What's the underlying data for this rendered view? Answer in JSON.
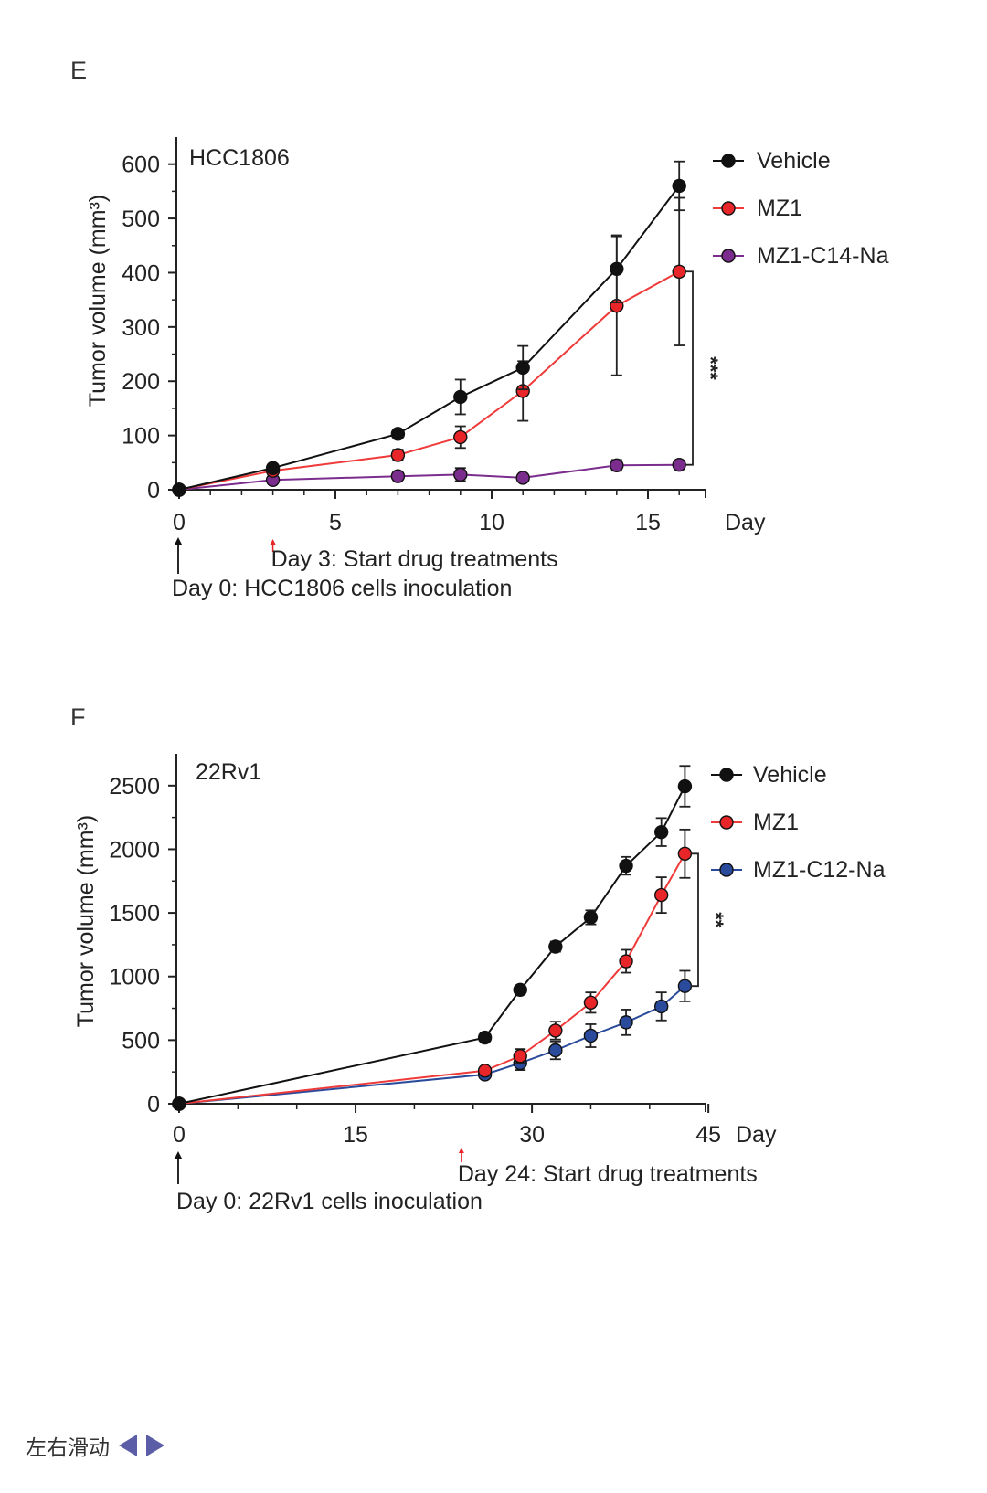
{
  "panels": {
    "e_letter": "E",
    "f_letter": "F"
  },
  "navigation": {
    "label": "左右滑动"
  },
  "colors": {
    "vehicle": "#111111",
    "mz1": "#e8262a",
    "mz1_line": "#ef3a3a",
    "c14": "#7b2d8e",
    "c12": "#2a4b9b",
    "axis": "#222222",
    "arrow_red": "#e8262a"
  },
  "chart_data": [
    {
      "type": "line",
      "panel": "E",
      "title": "HCC1806",
      "xlabel": "Day",
      "ylabel": "Tumor volume (mm³)",
      "xlim": [
        0,
        17
      ],
      "ylim": [
        0,
        650
      ],
      "xticks": [
        0,
        5,
        10,
        15
      ],
      "yticks": [
        0,
        100,
        200,
        300,
        400,
        500,
        600
      ],
      "significance": "***",
      "series": [
        {
          "name": "Vehicle",
          "color": "#111111",
          "points": [
            [
              0,
              0
            ],
            [
              3,
              40
            ],
            [
              7,
              103
            ],
            [
              9,
              171
            ],
            [
              11,
              225
            ],
            [
              14,
              407
            ],
            [
              16,
              560
            ]
          ],
          "errors": [
            0,
            4,
            5,
            32,
            40,
            62,
            45
          ]
        },
        {
          "name": "MZ1",
          "color": "#e8262a",
          "points": [
            [
              0,
              0
            ],
            [
              3,
              35
            ],
            [
              7,
              64
            ],
            [
              9,
              97
            ],
            [
              11,
              182
            ],
            [
              14,
              339
            ],
            [
              16,
              402
            ]
          ],
          "errors": [
            0,
            4,
            10,
            20,
            55,
            128,
            136
          ]
        },
        {
          "name": "MZ1-C14-Na",
          "color": "#7b2d8e",
          "points": [
            [
              0,
              0
            ],
            [
              3,
              18
            ],
            [
              7,
              25
            ],
            [
              9,
              28
            ],
            [
              11,
              22
            ],
            [
              14,
              45
            ],
            [
              16,
              46
            ]
          ],
          "errors": [
            0,
            3,
            6,
            12,
            4,
            10,
            8
          ]
        }
      ],
      "annotations": [
        {
          "day": 0,
          "text": "Day 0: HCC1806 cells inoculation",
          "color": "#111111"
        },
        {
          "day": 3,
          "text": "Day 3: Start drug treatments",
          "color": "#e8262a"
        }
      ]
    },
    {
      "type": "line",
      "panel": "F",
      "title": "22Rv1",
      "xlabel": "Day",
      "ylabel": "Tumor volume (mm³)",
      "xlim": [
        0,
        45
      ],
      "ylim": [
        0,
        2750
      ],
      "xticks": [
        0,
        15,
        30,
        45
      ],
      "yticks": [
        0,
        500,
        1000,
        1500,
        2000,
        2500
      ],
      "significance": "**",
      "series": [
        {
          "name": "Vehicle",
          "color": "#111111",
          "points": [
            [
              0,
              0
            ],
            [
              26,
              520
            ],
            [
              29,
              895
            ],
            [
              32,
              1235
            ],
            [
              35,
              1465
            ],
            [
              38,
              1870
            ],
            [
              41,
              2135
            ],
            [
              43,
              2495
            ]
          ],
          "errors": [
            0,
            25,
            30,
            40,
            55,
            70,
            110,
            160
          ]
        },
        {
          "name": "MZ1",
          "color": "#e8262a",
          "points": [
            [
              0,
              0
            ],
            [
              26,
              260
            ],
            [
              29,
              375
            ],
            [
              32,
              575
            ],
            [
              35,
              795
            ],
            [
              38,
              1120
            ],
            [
              41,
              1640
            ],
            [
              43,
              1965
            ]
          ],
          "errors": [
            0,
            25,
            55,
            70,
            80,
            90,
            140,
            190
          ]
        },
        {
          "name": "MZ1-C12-Na",
          "color": "#2a4b9b",
          "points": [
            [
              0,
              0
            ],
            [
              26,
              230
            ],
            [
              29,
              320
            ],
            [
              32,
              420
            ],
            [
              35,
              535
            ],
            [
              38,
              640
            ],
            [
              41,
              765
            ],
            [
              43,
              925
            ]
          ],
          "errors": [
            0,
            20,
            55,
            70,
            90,
            100,
            110,
            120
          ]
        }
      ],
      "annotations": [
        {
          "day": 0,
          "text": "Day 0: 22Rv1 cells inoculation",
          "color": "#111111"
        },
        {
          "day": 24,
          "text": "Day 24: Start drug treatments",
          "color": "#e8262a"
        }
      ]
    }
  ]
}
